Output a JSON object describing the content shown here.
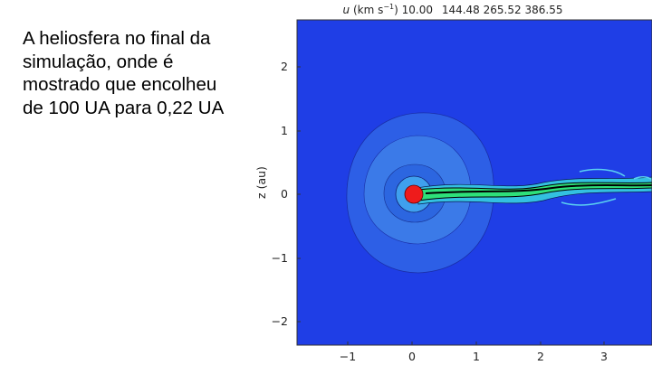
{
  "slide": {
    "text_lines": [
      "A heliosfera no final da",
      "simulação, onde é",
      "mostrado que encolheu",
      "de 100 UA para 0,22 UA"
    ]
  },
  "figure": {
    "colorbar": {
      "variable": "u",
      "unit": "(km s",
      "exponent": "−1",
      "unit_close": ")",
      "levels": [
        "10.00",
        "144.48",
        "265.52",
        "386.55"
      ]
    },
    "y_label": "z (au)",
    "xticks": [
      "−1",
      "0",
      "1",
      "2",
      "3"
    ],
    "yticks": [
      "2",
      "1",
      "0",
      "−1",
      "−2"
    ]
  }
}
